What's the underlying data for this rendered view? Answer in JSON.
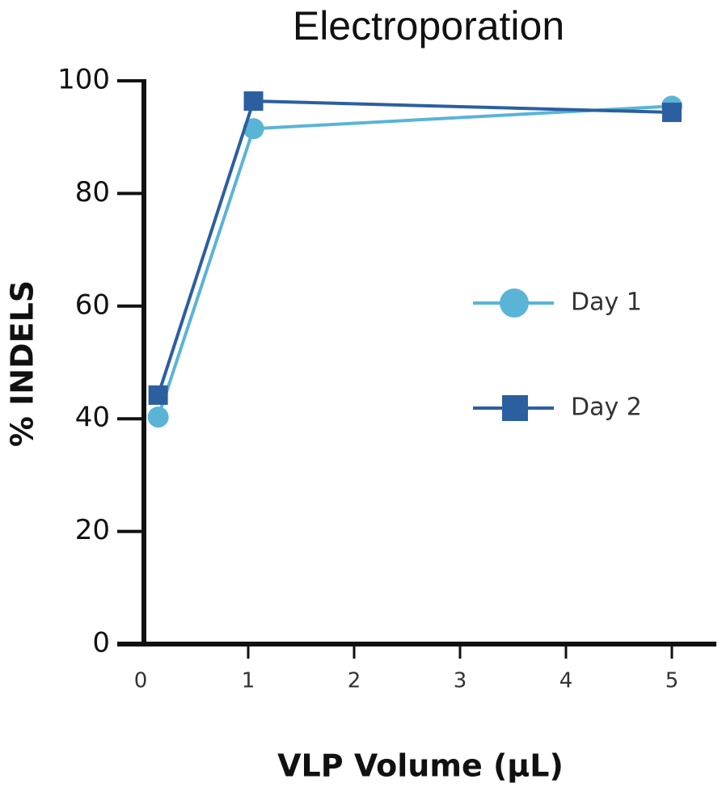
{
  "chart_data": {
    "type": "line",
    "title": "Electroporation",
    "x_label": "VLP Volume (µL)",
    "y_label": "% INDELS",
    "xlim": [
      0,
      5.42
    ],
    "xticks": [
      0,
      1,
      2,
      3,
      4,
      5
    ],
    "ylim": [
      0,
      100
    ],
    "yticks": [
      0,
      20,
      40,
      60,
      80,
      100
    ],
    "legend": "right",
    "series": [
      {
        "name": "Day 1",
        "color": "#5ab4d6",
        "marker": "circle",
        "x": [
          0.15,
          1.05,
          5.0
        ],
        "values": [
          40.3,
          91.5,
          95.5
        ]
      },
      {
        "name": "Day 2",
        "color": "#2b5fa0",
        "marker": "square",
        "x": [
          0.15,
          1.05,
          5.0
        ],
        "values": [
          44.2,
          96.4,
          94.4
        ]
      }
    ]
  }
}
